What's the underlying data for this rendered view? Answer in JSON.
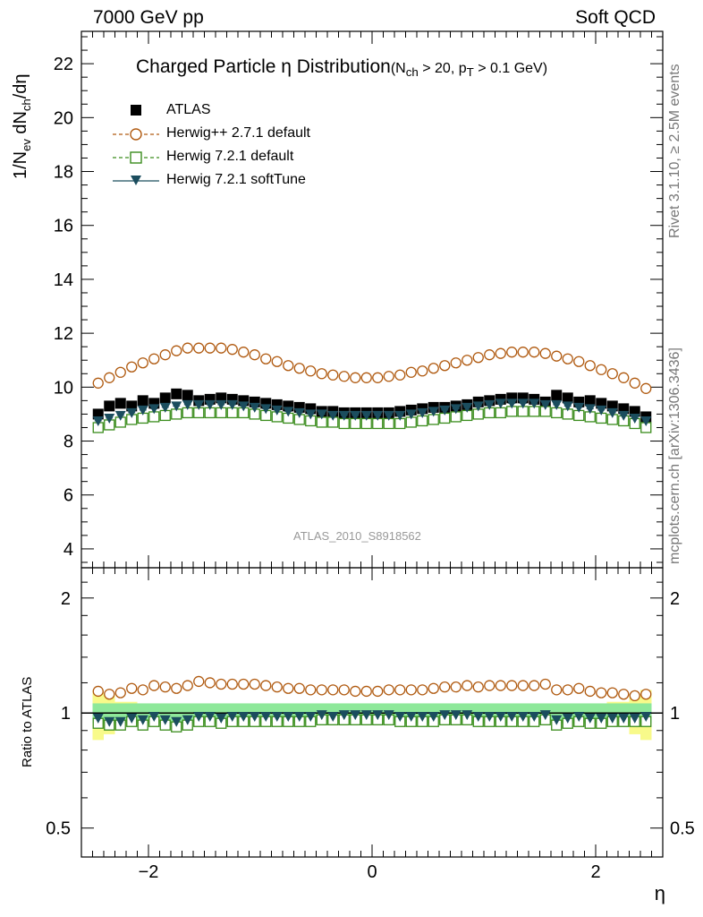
{
  "header": {
    "left": "7000 GeV pp",
    "right": "Soft QCD"
  },
  "title": {
    "main": "Charged Particle η Distribution",
    "cut_prefix": "(N",
    "cut_sub1": "ch",
    "cut_mid": " > 20, p",
    "cut_sub2": "T",
    "cut_suffix": " > 0.1 GeV)"
  },
  "side_notes": {
    "rivet": "Rivet 3.1.10, ≥ 2.5M events",
    "mcplots": "mcplots.cern.ch [arXiv:1306.3436]"
  },
  "analysis_id": "ATLAS_2010_S8918562",
  "axes": {
    "ylabel_main": "1/N",
    "ylabel_sub1": "ev",
    "ylabel_mid": " dN",
    "ylabel_sub2": "ch",
    "ylabel_tail": "/dη",
    "ylabel_ratio": "Ratio to ATLAS",
    "xlabel": "η"
  },
  "legend": [
    {
      "name": "ATLAS",
      "color": "#000000",
      "marker": "square-filled"
    },
    {
      "name": "Herwig++ 2.7.1 default",
      "color": "#b05a10",
      "marker": "circle-open"
    },
    {
      "name": "Herwig 7.2.1 default",
      "color": "#3a8c1c",
      "marker": "square-open"
    },
    {
      "name": "Herwig 7.2.1 softTune",
      "color": "#1b4d5e",
      "marker": "triangle-down-filled"
    }
  ],
  "chart_data": [
    {
      "type": "scatter",
      "panel": "main",
      "xlim": [
        -2.6,
        2.6
      ],
      "ylim": [
        3.3,
        23.2
      ],
      "xticks": [
        -2,
        0,
        2
      ],
      "yticks": [
        4,
        6,
        8,
        10,
        12,
        14,
        16,
        18,
        20,
        22
      ],
      "x": [
        -2.45,
        -2.35,
        -2.25,
        -2.15,
        -2.05,
        -1.95,
        -1.85,
        -1.75,
        -1.65,
        -1.55,
        -1.45,
        -1.35,
        -1.25,
        -1.15,
        -1.05,
        -0.95,
        -0.85,
        -0.75,
        -0.65,
        -0.55,
        -0.45,
        -0.35,
        -0.25,
        -0.15,
        -0.05,
        0.05,
        0.15,
        0.25,
        0.35,
        0.45,
        0.55,
        0.65,
        0.75,
        0.85,
        0.95,
        1.05,
        1.15,
        1.25,
        1.35,
        1.45,
        1.55,
        1.65,
        1.75,
        1.85,
        1.95,
        2.05,
        2.15,
        2.25,
        2.35,
        2.45
      ],
      "series": [
        {
          "name": "ATLAS",
          "values": [
            9.0,
            9.3,
            9.4,
            9.3,
            9.5,
            9.4,
            9.6,
            9.75,
            9.7,
            9.5,
            9.55,
            9.6,
            9.55,
            9.5,
            9.45,
            9.4,
            9.35,
            9.3,
            9.25,
            9.2,
            9.1,
            9.1,
            9.05,
            9.05,
            9.05,
            9.05,
            9.05,
            9.1,
            9.15,
            9.2,
            9.25,
            9.25,
            9.3,
            9.35,
            9.45,
            9.5,
            9.55,
            9.6,
            9.6,
            9.55,
            9.45,
            9.7,
            9.6,
            9.45,
            9.5,
            9.4,
            9.3,
            9.2,
            9.1,
            8.9
          ]
        },
        {
          "name": "Herwig++ 2.7.1 default",
          "values": [
            10.15,
            10.35,
            10.55,
            10.75,
            10.9,
            11.05,
            11.2,
            11.35,
            11.45,
            11.45,
            11.45,
            11.45,
            11.4,
            11.3,
            11.2,
            11.05,
            10.95,
            10.8,
            10.7,
            10.6,
            10.5,
            10.45,
            10.4,
            10.35,
            10.35,
            10.35,
            10.4,
            10.45,
            10.55,
            10.6,
            10.7,
            10.8,
            10.9,
            11.0,
            11.1,
            11.2,
            11.25,
            11.3,
            11.3,
            11.3,
            11.25,
            11.15,
            11.05,
            10.95,
            10.8,
            10.65,
            10.5,
            10.35,
            10.15,
            9.95
          ]
        },
        {
          "name": "Herwig 7.2.1 default",
          "values": [
            8.5,
            8.6,
            8.7,
            8.8,
            8.85,
            8.9,
            8.95,
            9.0,
            9.05,
            9.05,
            9.05,
            9.05,
            9.05,
            9.05,
            9.0,
            8.95,
            8.9,
            8.85,
            8.8,
            8.75,
            8.7,
            8.7,
            8.65,
            8.65,
            8.65,
            8.65,
            8.65,
            8.65,
            8.7,
            8.75,
            8.8,
            8.85,
            8.9,
            8.95,
            9.0,
            9.05,
            9.05,
            9.1,
            9.1,
            9.1,
            9.1,
            9.05,
            9.0,
            8.95,
            8.9,
            8.85,
            8.8,
            8.75,
            8.65,
            8.5
          ]
        },
        {
          "name": "Herwig 7.2.1 softTune",
          "values": [
            8.75,
            8.85,
            8.95,
            9.05,
            9.15,
            9.2,
            9.25,
            9.3,
            9.35,
            9.35,
            9.35,
            9.35,
            9.35,
            9.3,
            9.25,
            9.2,
            9.15,
            9.1,
            9.05,
            9.0,
            9.0,
            8.95,
            8.95,
            8.95,
            8.95,
            8.95,
            8.95,
            8.95,
            9.0,
            9.05,
            9.1,
            9.15,
            9.2,
            9.25,
            9.3,
            9.35,
            9.4,
            9.4,
            9.4,
            9.4,
            9.35,
            9.35,
            9.3,
            9.25,
            9.2,
            9.15,
            9.05,
            8.95,
            8.85,
            8.75
          ]
        }
      ]
    },
    {
      "type": "scatter",
      "panel": "ratio",
      "xlim": [
        -2.6,
        2.6
      ],
      "ylim": [
        0.42,
        2.4
      ],
      "yscale": "log",
      "xticks": [
        -2,
        0,
        2
      ],
      "yticks": [
        0.5,
        1,
        2
      ],
      "band_yellow_half": [
        0.15,
        0.12,
        0.07,
        0.07,
        0.05,
        0.05,
        0.05,
        0.05,
        0.05,
        0.05,
        0.04,
        0.04,
        0.04,
        0.04,
        0.04,
        0.04,
        0.04,
        0.04,
        0.04,
        0.04,
        0.04,
        0.04,
        0.04,
        0.04,
        0.04,
        0.04,
        0.04,
        0.04,
        0.04,
        0.04,
        0.04,
        0.04,
        0.04,
        0.04,
        0.04,
        0.04,
        0.04,
        0.04,
        0.04,
        0.05,
        0.05,
        0.05,
        0.05,
        0.05,
        0.05,
        0.05,
        0.07,
        0.07,
        0.12,
        0.15
      ],
      "band_green_half": 0.06,
      "series": [
        {
          "name": "Herwig++ 2.7.1 default",
          "values": [
            1.14,
            1.12,
            1.13,
            1.16,
            1.15,
            1.18,
            1.17,
            1.16,
            1.18,
            1.21,
            1.2,
            1.19,
            1.19,
            1.19,
            1.19,
            1.18,
            1.17,
            1.16,
            1.16,
            1.15,
            1.15,
            1.15,
            1.15,
            1.14,
            1.14,
            1.14,
            1.15,
            1.15,
            1.15,
            1.15,
            1.16,
            1.17,
            1.17,
            1.18,
            1.17,
            1.18,
            1.18,
            1.18,
            1.18,
            1.18,
            1.19,
            1.15,
            1.15,
            1.16,
            1.14,
            1.13,
            1.13,
            1.12,
            1.11,
            1.12
          ]
        },
        {
          "name": "Herwig 7.2.1 default",
          "values": [
            0.94,
            0.93,
            0.93,
            0.95,
            0.93,
            0.95,
            0.93,
            0.92,
            0.93,
            0.95,
            0.95,
            0.94,
            0.95,
            0.95,
            0.95,
            0.95,
            0.95,
            0.95,
            0.95,
            0.95,
            0.96,
            0.96,
            0.96,
            0.96,
            0.96,
            0.96,
            0.96,
            0.95,
            0.95,
            0.95,
            0.95,
            0.96,
            0.96,
            0.96,
            0.95,
            0.95,
            0.95,
            0.95,
            0.95,
            0.95,
            0.96,
            0.93,
            0.94,
            0.95,
            0.94,
            0.94,
            0.95,
            0.95,
            0.95,
            0.95
          ]
        },
        {
          "name": "Herwig 7.2.1 softTune",
          "values": [
            0.97,
            0.95,
            0.95,
            0.97,
            0.96,
            0.98,
            0.96,
            0.95,
            0.96,
            0.98,
            0.98,
            0.97,
            0.98,
            0.98,
            0.98,
            0.98,
            0.98,
            0.98,
            0.98,
            0.98,
            0.99,
            0.98,
            0.99,
            0.99,
            0.99,
            0.99,
            0.99,
            0.98,
            0.98,
            0.98,
            0.98,
            0.99,
            0.99,
            0.99,
            0.98,
            0.98,
            0.98,
            0.98,
            0.98,
            0.98,
            0.99,
            0.96,
            0.97,
            0.98,
            0.97,
            0.97,
            0.97,
            0.97,
            0.97,
            0.98
          ]
        }
      ]
    }
  ]
}
